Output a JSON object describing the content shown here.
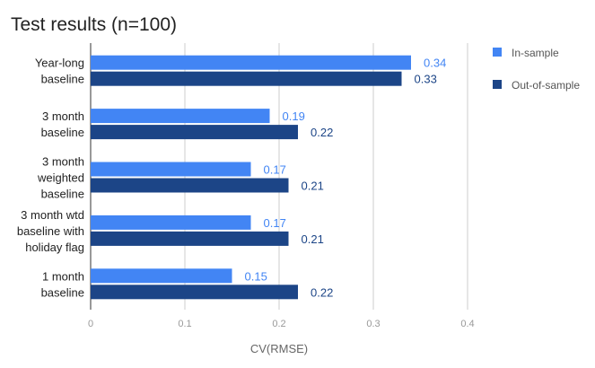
{
  "chart_data": {
    "type": "bar",
    "orientation": "horizontal",
    "title": "Test results (n=100)",
    "xlabel": "CV(RMSE)",
    "ylabel": "",
    "categories": [
      [
        "Year-long",
        "baseline"
      ],
      [
        "3 month",
        "baseline"
      ],
      [
        "3 month",
        "weighted",
        "baseline"
      ],
      [
        "3 month wtd",
        "baseline with",
        "holiday flag"
      ],
      [
        "1 month",
        "baseline"
      ]
    ],
    "series": [
      {
        "name": "In-sample",
        "color": "#4285F4",
        "values": [
          0.34,
          0.19,
          0.17,
          0.17,
          0.15
        ]
      },
      {
        "name": "Out-of-sample",
        "color": "#1C4587",
        "values": [
          0.33,
          0.22,
          0.21,
          0.21,
          0.22
        ]
      }
    ],
    "xlim": [
      0,
      0.4
    ],
    "xticks": [
      "0",
      "0.1",
      "0.2",
      "0.3",
      "0.4"
    ],
    "grid": true,
    "legend": "right"
  }
}
